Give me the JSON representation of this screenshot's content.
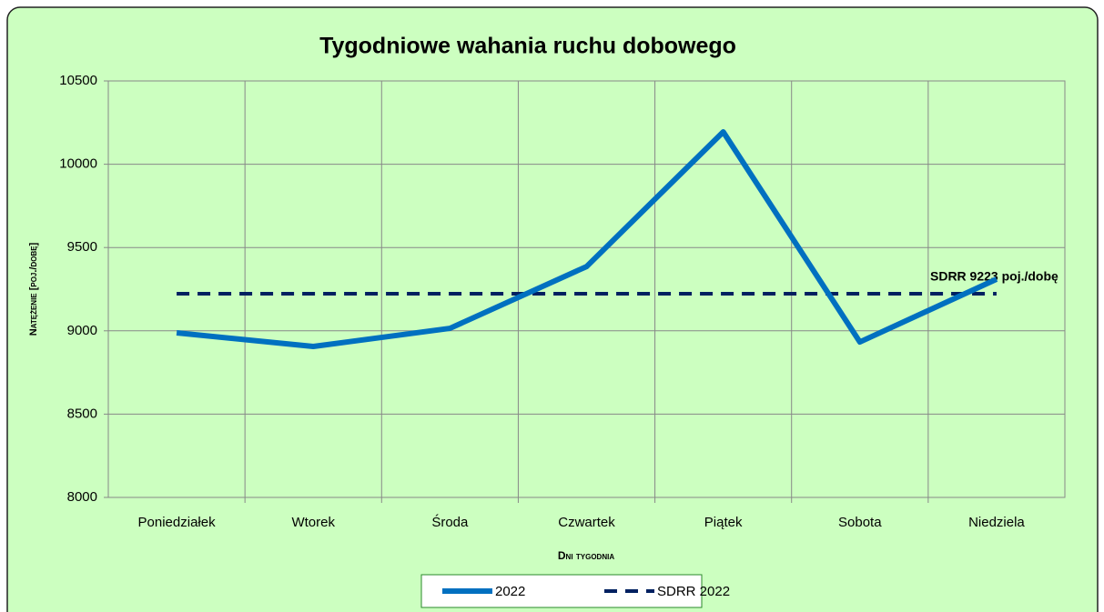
{
  "chart_data": {
    "type": "line",
    "title": "Tygodniowe wahania ruchu dobowego",
    "x_label": "Dni tygodnia",
    "y_label": "Natężenie [poj./dobę]",
    "categories": [
      "Poniedziałek",
      "Wtorek",
      "Środa",
      "Czwartek",
      "Piątek",
      "Sobota",
      "Niedziela"
    ],
    "series": [
      {
        "name": "2022",
        "color": "#0070c0",
        "dashed": false,
        "values": [
          8988,
          8906,
          9015,
          9386,
          10194,
          8933,
          9310
        ]
      },
      {
        "name": "SDRR 2022",
        "color": "#002060",
        "dashed": true,
        "values": [
          9223,
          9223,
          9223,
          9223,
          9223,
          9223,
          9223
        ]
      }
    ],
    "annotation": "SDRR 9223  poj./dobę",
    "ylim": [
      8000,
      10500
    ],
    "yticks": [
      8000,
      8500,
      9000,
      9500,
      10000,
      10500
    ],
    "grid": true,
    "legend": "bottom",
    "background": "#ccffc0"
  }
}
